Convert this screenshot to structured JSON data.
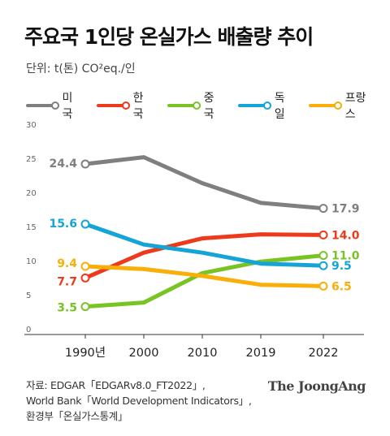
{
  "title": "주요국 1인당 온실가스 배출량 추이",
  "unit_text": "단위: t(톤) CO²eq./인",
  "source_lines": [
    "자료: EDGAR「EDGARv8.0_FT2022」,",
    "World Bank「World Development Indicators」,",
    "환경부「온실가스통계」"
  ],
  "brand": "The JoongAng",
  "chart_data": {
    "type": "line",
    "title": "주요국 1인당 온실가스 배출량 추이",
    "x": [
      "1990년",
      "2000",
      "2010",
      "2019",
      "2022"
    ],
    "xlabel": "",
    "ylabel": "",
    "ylim": [
      0,
      30
    ],
    "yticks": [
      0,
      5,
      10,
      15,
      20,
      25,
      30
    ],
    "grid": false,
    "legend": "top-left",
    "series": [
      {
        "name": "미국",
        "color": "#7f7f7f",
        "values": [
          24.4,
          25.4,
          21.6,
          18.7,
          17.9
        ],
        "start_label": "24.4",
        "end_label": "17.9"
      },
      {
        "name": "한국",
        "color": "#ee3a1c",
        "values": [
          7.7,
          11.4,
          13.5,
          14.1,
          14.0
        ],
        "start_label": "7.7",
        "end_label": "14.0"
      },
      {
        "name": "중국",
        "color": "#79c325",
        "values": [
          3.5,
          4.1,
          8.4,
          10.1,
          11.0
        ],
        "start_label": "3.5",
        "end_label": "11.0"
      },
      {
        "name": "독일",
        "color": "#14a4d6",
        "values": [
          15.6,
          12.6,
          11.4,
          9.8,
          9.5
        ],
        "start_label": "15.6",
        "end_label": "9.5"
      },
      {
        "name": "프랑스",
        "color": "#f9ae0a",
        "values": [
          9.4,
          9.0,
          8.0,
          6.7,
          6.5
        ],
        "start_label": "9.4",
        "end_label": "6.5"
      }
    ]
  }
}
